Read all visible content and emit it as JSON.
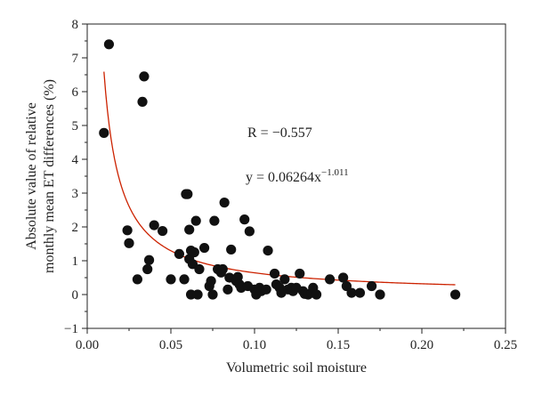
{
  "chart_data": {
    "type": "scatter",
    "xlabel": "Volumetric soil moisture",
    "ylabel_lines": [
      "Absolute value of relative",
      "monthly mean ET differences (%)"
    ],
    "xlim": [
      0.0,
      0.25
    ],
    "ylim": [
      -1,
      8
    ],
    "x_ticks": [
      "0.00",
      "0.05",
      "0.10",
      "0.15",
      "0.20",
      "0.25"
    ],
    "y_ticks": [
      "−1",
      "0",
      "1",
      "2",
      "3",
      "4",
      "5",
      "6",
      "7",
      "8"
    ],
    "grid": false,
    "annotations": {
      "r_text": "R = −0.557",
      "eq_prefix": "y = 0.06264x",
      "eq_exponent": "−1.011"
    },
    "fit": {
      "a": 0.06264,
      "b": -1.011,
      "x_range": [
        0.01,
        0.22
      ],
      "color": "#cc2200"
    },
    "point_color": "#111111",
    "points": [
      [
        0.01,
        4.78
      ],
      [
        0.013,
        7.4
      ],
      [
        0.033,
        5.7
      ],
      [
        0.034,
        6.45
      ],
      [
        0.024,
        1.9
      ],
      [
        0.025,
        1.52
      ],
      [
        0.03,
        0.45
      ],
      [
        0.036,
        0.75
      ],
      [
        0.037,
        1.02
      ],
      [
        0.04,
        2.05
      ],
      [
        0.045,
        1.88
      ],
      [
        0.05,
        0.45
      ],
      [
        0.055,
        1.2
      ],
      [
        0.058,
        0.45
      ],
      [
        0.059,
        2.97
      ],
      [
        0.06,
        2.97
      ],
      [
        0.061,
        1.92
      ],
      [
        0.062,
        1.3
      ],
      [
        0.061,
        1.05
      ],
      [
        0.063,
        0.9
      ],
      [
        0.064,
        1.25
      ],
      [
        0.065,
        2.18
      ],
      [
        0.062,
        0.0
      ],
      [
        0.066,
        0.0
      ],
      [
        0.067,
        0.75
      ],
      [
        0.07,
        1.38
      ],
      [
        0.073,
        0.25
      ],
      [
        0.074,
        0.4
      ],
      [
        0.075,
        0.0
      ],
      [
        0.076,
        2.18
      ],
      [
        0.078,
        0.75
      ],
      [
        0.08,
        0.65
      ],
      [
        0.081,
        0.75
      ],
      [
        0.082,
        2.72
      ],
      [
        0.084,
        0.15
      ],
      [
        0.085,
        0.5
      ],
      [
        0.086,
        1.33
      ],
      [
        0.089,
        0.4
      ],
      [
        0.09,
        0.52
      ],
      [
        0.091,
        0.3
      ],
      [
        0.092,
        0.2
      ],
      [
        0.094,
        2.22
      ],
      [
        0.096,
        0.25
      ],
      [
        0.097,
        1.87
      ],
      [
        0.1,
        0.15
      ],
      [
        0.101,
        0.0
      ],
      [
        0.103,
        0.2
      ],
      [
        0.104,
        0.1
      ],
      [
        0.107,
        0.15
      ],
      [
        0.108,
        1.3
      ],
      [
        0.112,
        0.62
      ],
      [
        0.113,
        0.3
      ],
      [
        0.115,
        0.2
      ],
      [
        0.116,
        0.05
      ],
      [
        0.118,
        0.45
      ],
      [
        0.12,
        0.15
      ],
      [
        0.122,
        0.2
      ],
      [
        0.123,
        0.1
      ],
      [
        0.125,
        0.2
      ],
      [
        0.127,
        0.62
      ],
      [
        0.129,
        0.1
      ],
      [
        0.13,
        0.02
      ],
      [
        0.132,
        0.0
      ],
      [
        0.134,
        0.05
      ],
      [
        0.135,
        0.2
      ],
      [
        0.137,
        0.0
      ],
      [
        0.145,
        0.45
      ],
      [
        0.153,
        0.5
      ],
      [
        0.155,
        0.25
      ],
      [
        0.158,
        0.05
      ],
      [
        0.163,
        0.05
      ],
      [
        0.17,
        0.25
      ],
      [
        0.175,
        0.0
      ],
      [
        0.22,
        0.0
      ]
    ]
  }
}
